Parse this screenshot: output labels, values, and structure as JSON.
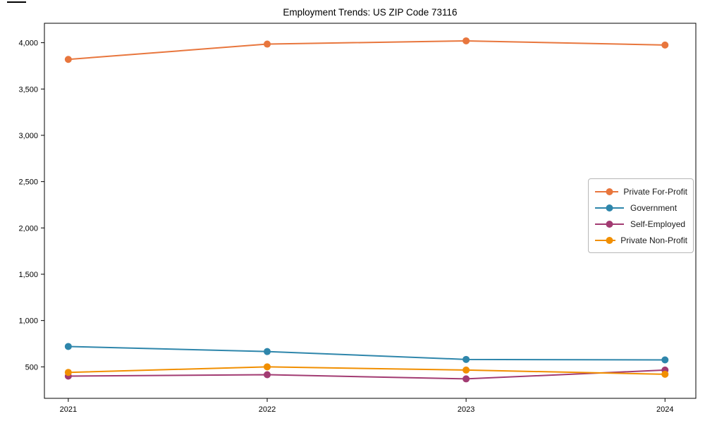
{
  "figure": {
    "title": "Employment Trends: US ZIP Code 73116"
  },
  "chart_data": {
    "type": "line",
    "title": "Employment Trends: US ZIP Code 73116",
    "xlabel": "",
    "ylabel": "",
    "x": [
      2021,
      2022,
      2023,
      2024
    ],
    "xtick_labels": [
      "2021",
      "2022",
      "2023",
      "2024"
    ],
    "series": [
      {
        "name": "Private For-Profit",
        "color": "#e8763d",
        "values": [
          3820,
          3985,
          4020,
          3975
        ]
      },
      {
        "name": "Government",
        "color": "#2e86ab",
        "values": [
          720,
          665,
          580,
          575
        ]
      },
      {
        "name": "Self-Employed",
        "color": "#a23b72",
        "values": [
          400,
          415,
          370,
          465
        ]
      },
      {
        "name": "Private Non-Profit",
        "color": "#f18f01",
        "values": [
          440,
          500,
          465,
          420
        ]
      }
    ],
    "yticks": [
      500,
      1000,
      1500,
      2000,
      2500,
      3000,
      3500,
      4000
    ],
    "ytick_labels": [
      "500",
      "1,000",
      "1,500",
      "2,000",
      "2,500",
      "3,000",
      "3,500",
      "4,000"
    ],
    "ylim": [
      160,
      4210
    ],
    "xlim": [
      2020.88,
      2024.155
    ],
    "grid": false,
    "legend_position": "center right",
    "axis_color": "#000000",
    "text_color": "#000000"
  }
}
